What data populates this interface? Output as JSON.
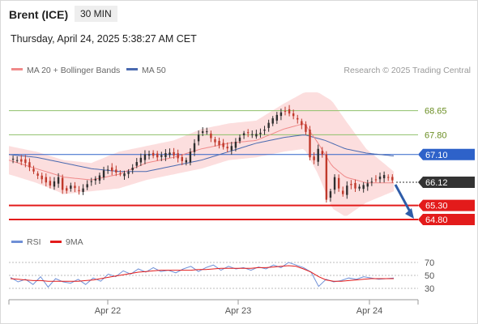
{
  "header": {
    "instrument": "Brent (ICE)",
    "timeframe": "30 MIN",
    "datetime": "Thursday, April 24, 2025 5:38:27 AM CET"
  },
  "legend": {
    "ma20": "MA 20 + Bollinger Bands",
    "ma50": "MA 50",
    "credit": "Research © 2025 Trading Central",
    "rsi": "RSI",
    "rsi_ma": "9MA"
  },
  "colors": {
    "up_candle": "#2e2e2e",
    "down_candle": "#c0392b",
    "ma20": "#f08a8a",
    "ma50": "#4a6ab0",
    "bollinger_fill": "#fcdede",
    "resistance": "#8ec06a",
    "pivot": "#2e62c9",
    "support": "#e31b1b",
    "arrow": "#2e5ca8",
    "current_price": "#333333",
    "rsi": "#6f8fd6",
    "rsi_ma": "#e31b1b"
  },
  "chart_data": [
    {
      "type": "candlestick",
      "title": "",
      "x_ticks": [
        "Apr 22",
        "Apr 23",
        "Apr 24"
      ],
      "ylim": [
        64.4,
        69.7
      ],
      "current_price": {
        "label": "66.12",
        "value": 66.12
      },
      "levels": [
        {
          "label": "68.65",
          "value": 68.65,
          "kind": "resistance"
        },
        {
          "label": "67.80",
          "value": 67.8,
          "kind": "resistance"
        },
        {
          "label": "67.10",
          "value": 67.1,
          "kind": "pivot"
        },
        {
          "label": "65.30",
          "value": 65.3,
          "kind": "support"
        },
        {
          "label": "64.80",
          "value": 64.8,
          "kind": "support"
        }
      ],
      "close_path": [
        [
          0,
          67.0
        ],
        [
          12,
          66.8
        ],
        [
          22,
          66.3
        ],
        [
          30,
          66.0
        ],
        [
          36,
          66.3
        ],
        [
          40,
          65.7
        ],
        [
          45,
          66.0
        ],
        [
          52,
          65.8
        ],
        [
          58,
          66.1
        ],
        [
          65,
          66.3
        ],
        [
          70,
          66.6
        ],
        [
          76,
          66.5
        ],
        [
          82,
          66.4
        ],
        [
          88,
          66.5
        ],
        [
          94,
          66.9
        ],
        [
          100,
          67.15
        ],
        [
          108,
          67.0
        ],
        [
          116,
          67.2
        ],
        [
          122,
          67.0
        ],
        [
          128,
          66.8
        ],
        [
          133,
          67.3
        ],
        [
          138,
          67.8
        ],
        [
          143,
          68.0
        ],
        [
          148,
          67.6
        ],
        [
          154,
          67.4
        ],
        [
          160,
          67.3
        ],
        [
          166,
          67.6
        ],
        [
          172,
          67.9
        ],
        [
          178,
          67.8
        ],
        [
          185,
          67.9
        ],
        [
          190,
          68.3
        ],
        [
          195,
          68.5
        ],
        [
          200,
          68.65
        ],
        [
          206,
          68.5
        ],
        [
          211,
          68.3
        ],
        [
          216,
          67.9
        ],
        [
          219,
          67.0
        ],
        [
          222,
          66.9
        ],
        [
          225,
          67.3
        ],
        [
          228,
          67.1
        ],
        [
          231,
          65.5
        ],
        [
          234,
          65.8
        ],
        [
          237,
          66.3
        ],
        [
          240,
          65.9
        ],
        [
          243,
          65.7
        ],
        [
          247,
          66.1
        ],
        [
          252,
          65.9
        ],
        [
          257,
          66.0
        ],
        [
          262,
          66.1
        ],
        [
          267,
          66.2
        ],
        [
          272,
          66.4
        ],
        [
          276,
          66.3
        ],
        [
          280,
          66.15
        ]
      ],
      "ma20_path": [
        [
          0,
          66.9
        ],
        [
          20,
          66.6
        ],
        [
          40,
          66.3
        ],
        [
          60,
          66.2
        ],
        [
          80,
          66.4
        ],
        [
          100,
          66.8
        ],
        [
          120,
          67.0
        ],
        [
          140,
          67.3
        ],
        [
          160,
          67.5
        ],
        [
          180,
          67.6
        ],
        [
          200,
          68.0
        ],
        [
          215,
          68.2
        ],
        [
          225,
          67.5
        ],
        [
          235,
          66.7
        ],
        [
          245,
          66.3
        ],
        [
          260,
          66.1
        ],
        [
          280,
          66.1
        ]
      ],
      "ma50_path": [
        [
          0,
          67.1
        ],
        [
          20,
          67.0
        ],
        [
          40,
          66.8
        ],
        [
          60,
          66.6
        ],
        [
          80,
          66.5
        ],
        [
          100,
          66.5
        ],
        [
          120,
          66.7
        ],
        [
          140,
          66.9
        ],
        [
          160,
          67.2
        ],
        [
          180,
          67.5
        ],
        [
          200,
          67.7
        ],
        [
          215,
          67.8
        ],
        [
          230,
          67.6
        ],
        [
          245,
          67.3
        ],
        [
          260,
          67.15
        ],
        [
          280,
          67.05
        ]
      ],
      "bollinger_upper": [
        [
          0,
          67.4
        ],
        [
          20,
          67.2
        ],
        [
          40,
          66.9
        ],
        [
          60,
          66.8
        ],
        [
          80,
          67.2
        ],
        [
          100,
          67.4
        ],
        [
          120,
          67.6
        ],
        [
          140,
          68.0
        ],
        [
          160,
          68.2
        ],
        [
          180,
          68.3
        ],
        [
          200,
          68.9
        ],
        [
          215,
          69.3
        ],
        [
          225,
          69.3
        ],
        [
          235,
          69.0
        ],
        [
          245,
          68.3
        ],
        [
          260,
          67.3
        ],
        [
          280,
          66.5
        ]
      ],
      "bollinger_lower": [
        [
          0,
          66.4
        ],
        [
          20,
          66.1
        ],
        [
          40,
          65.7
        ],
        [
          60,
          65.8
        ],
        [
          80,
          65.9
        ],
        [
          100,
          66.2
        ],
        [
          120,
          66.4
        ],
        [
          140,
          66.6
        ],
        [
          160,
          66.9
        ],
        [
          180,
          67.0
        ],
        [
          200,
          67.2
        ],
        [
          215,
          67.3
        ],
        [
          225,
          66.4
        ],
        [
          235,
          65.2
        ],
        [
          245,
          64.9
        ],
        [
          260,
          65.4
        ],
        [
          280,
          65.8
        ]
      ],
      "forecast_arrow": {
        "from": 66.12,
        "to": 64.8
      }
    },
    {
      "type": "line",
      "title": "",
      "ylim": [
        20,
        80
      ],
      "y_ticks": [
        {
          "label": "70",
          "value": 70
        },
        {
          "label": "50",
          "value": 50
        },
        {
          "label": "30",
          "value": 30
        }
      ],
      "series": [
        {
          "name": "RSI",
          "values": [
            47,
            40,
            44,
            36,
            48,
            32,
            45,
            40,
            38,
            44,
            36,
            46,
            41,
            52,
            48,
            57,
            52,
            60,
            55,
            62,
            56,
            58,
            54,
            60,
            64,
            56,
            62,
            66,
            58,
            64,
            60,
            62,
            58,
            63,
            60,
            66,
            62,
            70,
            66,
            62,
            55,
            33,
            44,
            40,
            42,
            46,
            44,
            48,
            46,
            44,
            45,
            46
          ]
        },
        {
          "name": "9MA",
          "values": [
            45,
            44,
            43,
            42,
            42,
            41,
            41,
            41,
            41,
            41,
            42,
            43,
            45,
            47,
            49,
            51,
            53,
            55,
            56,
            57,
            58,
            58,
            58,
            58,
            58,
            59,
            59,
            60,
            61,
            61,
            61,
            61,
            61,
            62,
            62,
            63,
            64,
            65,
            64,
            60,
            55,
            48,
            43,
            41,
            41,
            42,
            43,
            44,
            45,
            45,
            45,
            45
          ]
        }
      ]
    }
  ]
}
